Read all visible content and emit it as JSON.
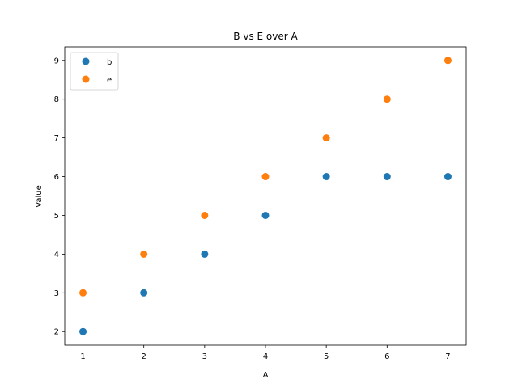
{
  "chart_data": {
    "type": "scatter",
    "title": "B vs E over A",
    "xlabel": "A",
    "ylabel": "Value",
    "x": [
      1,
      2,
      3,
      4,
      5,
      6,
      7
    ],
    "xticks": [
      1,
      2,
      3,
      4,
      5,
      6,
      7
    ],
    "yticks": [
      2,
      3,
      4,
      5,
      6,
      7,
      8,
      9
    ],
    "xlim": [
      0.7,
      7.3
    ],
    "ylim": [
      1.65,
      9.35
    ],
    "grid": false,
    "legend_position": "top-left",
    "series": [
      {
        "name": "b",
        "values": [
          2,
          3,
          4,
          5,
          6,
          6,
          6
        ],
        "color": "#1f77b4"
      },
      {
        "name": "e",
        "values": [
          3,
          4,
          5,
          6,
          7,
          8,
          9
        ],
        "color": "#ff7f0e"
      }
    ]
  }
}
